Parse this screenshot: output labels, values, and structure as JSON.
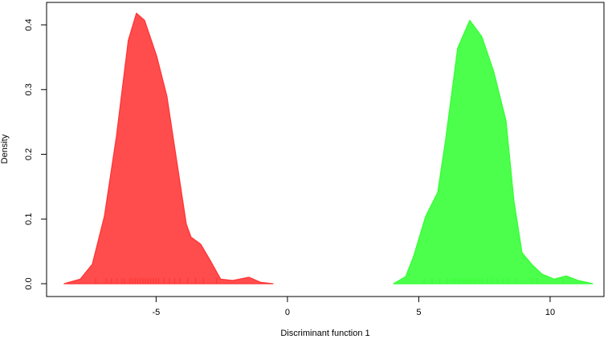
{
  "chart_data": {
    "type": "density",
    "xlabel": "Discriminant function 1",
    "ylabel": "Density",
    "xlim": [
      -9.17,
      12.05
    ],
    "ylim": [
      -0.0198,
      0.4347
    ],
    "xticks": [
      -5,
      0,
      5,
      10
    ],
    "yticks": [
      {
        "value": 0,
        "label": "0.0"
      },
      0.1,
      0.2,
      0.3,
      0.4
    ],
    "grid": false,
    "series": [
      {
        "color": "#ff3333",
        "x": [
          -8.5,
          -7.89,
          -7.43,
          -6.97,
          -6.51,
          -6.06,
          -5.75,
          -5.44,
          -4.98,
          -4.59,
          -4.22,
          -3.85,
          -3.67,
          -3.3,
          -2.94,
          -2.54,
          -2.08,
          -1.47,
          -1.01,
          -0.55
        ],
        "values": [
          0,
          0.007,
          0.03,
          0.104,
          0.228,
          0.376,
          0.418,
          0.407,
          0.352,
          0.29,
          0.191,
          0.092,
          0.072,
          0.061,
          0.036,
          0.007,
          0.005,
          0.01,
          0.002,
          0
        ],
        "rug": [
          -7.3,
          -6.9,
          -6.7,
          -6.5,
          -6.3,
          -6.2,
          -6.0,
          -5.9,
          -5.8,
          -5.7,
          -5.6,
          -5.5,
          -5.4,
          -5.3,
          -5.2,
          -5.1,
          -5.0,
          -4.9,
          -4.7,
          -4.5,
          -4.3,
          -4.1,
          -3.8,
          -3.5,
          -3.2,
          -2.7
        ]
      },
      {
        "color": "#33ff33",
        "x": [
          4.04,
          4.5,
          4.8,
          5.26,
          5.72,
          6.02,
          6.48,
          6.94,
          7.4,
          7.86,
          8.32,
          8.62,
          8.93,
          9.3,
          9.69,
          10.15,
          10.61,
          11.07,
          11.62
        ],
        "values": [
          0,
          0.011,
          0.042,
          0.104,
          0.141,
          0.222,
          0.364,
          0.407,
          0.382,
          0.327,
          0.252,
          0.129,
          0.048,
          0.03,
          0.015,
          0.007,
          0.012,
          0.005,
          0
        ],
        "rug": [
          5.2,
          5.5,
          5.8,
          6.1,
          6.3,
          6.4,
          6.5,
          6.6,
          6.7,
          6.8,
          6.9,
          7.0,
          7.1,
          7.2,
          7.3,
          7.4,
          7.6,
          7.8,
          8.0,
          8.2,
          8.4,
          8.7,
          9.3,
          9.5,
          10.5
        ]
      }
    ]
  }
}
